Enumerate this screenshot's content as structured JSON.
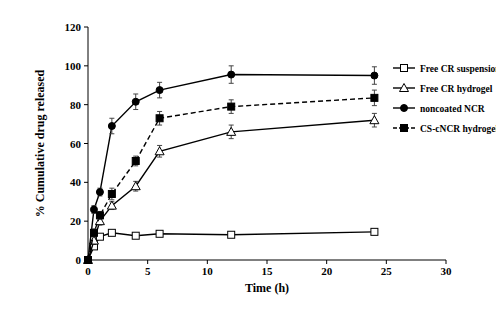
{
  "chart_data": {
    "type": "line",
    "x_label": "Time (h)",
    "y_label": "% Cumulative drug released",
    "x": [
      0,
      0.5,
      1,
      2,
      4,
      6,
      12,
      24
    ],
    "xlim": [
      0,
      30
    ],
    "xticks": [
      0,
      5,
      10,
      15,
      20,
      25,
      30
    ],
    "ylim": [
      0,
      120
    ],
    "yticks": [
      0,
      20,
      40,
      60,
      80,
      100,
      120
    ],
    "grid": false,
    "legend": "right",
    "series": [
      {
        "name": "Free CR suspension",
        "color": "#000000",
        "marker": "open-square",
        "line_style": "solid",
        "values": [
          0,
          7,
          12,
          14,
          12.5,
          13.5,
          13,
          14.5
        ],
        "errors": [
          0,
          1,
          1,
          1,
          1,
          1,
          1,
          1
        ]
      },
      {
        "name": "Free CR hydrogel",
        "color": "#000000",
        "marker": "open-triangle",
        "line_style": "solid",
        "values": [
          0,
          10,
          20,
          28,
          38,
          56,
          66,
          72
        ],
        "errors": [
          0,
          2,
          2,
          2,
          2.5,
          3,
          3.5,
          3.5
        ]
      },
      {
        "name": "noncoated NCR",
        "color": "#000000",
        "marker": "filled-circle",
        "line_style": "solid",
        "values": [
          0,
          26,
          35,
          69,
          81.5,
          87.5,
          95.5,
          95
        ],
        "errors": [
          0,
          2,
          2,
          4,
          4,
          4,
          4.5,
          4.5
        ]
      },
      {
        "name": "CS-cNCR hydrogel",
        "color": "#000000",
        "marker": "filled-square",
        "line_style": "dashed",
        "values": [
          0,
          14,
          23,
          34,
          51,
          73,
          79,
          83.5
        ],
        "errors": [
          0,
          2,
          2,
          3,
          2.5,
          3.5,
          3.5,
          4
        ]
      }
    ]
  }
}
